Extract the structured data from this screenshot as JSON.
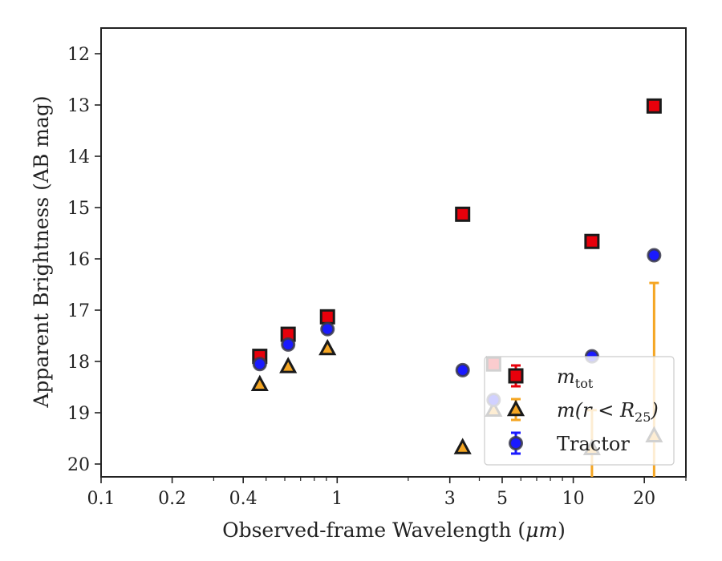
{
  "chart_data": {
    "type": "scatter",
    "title": "",
    "xlabel": "Observed-frame Wavelength (",
    "xlabel_unit": "μm",
    "xlabel_close": ")",
    "ylabel": "Apparent Brightness (AB mag)",
    "xscale": "log",
    "xlim": [
      0.1,
      30
    ],
    "ylim": [
      20.25,
      11.5
    ],
    "y_inverted": true,
    "grid": false,
    "legend_position": "lower-right",
    "x_ticks": [
      {
        "value": 0.1,
        "label": "0.1"
      },
      {
        "value": 0.2,
        "label": "0.2"
      },
      {
        "value": 0.4,
        "label": "0.4"
      },
      {
        "value": 1,
        "label": "1"
      },
      {
        "value": 3,
        "label": "3"
      },
      {
        "value": 5,
        "label": "5"
      },
      {
        "value": 10,
        "label": "10"
      },
      {
        "value": 20,
        "label": "20"
      }
    ],
    "x_minor_ticks": [
      0.3,
      0.5,
      0.6,
      0.7,
      0.8,
      0.9,
      2,
      4,
      6,
      7,
      8,
      9,
      30
    ],
    "y_ticks": [
      {
        "value": 12,
        "label": "12"
      },
      {
        "value": 13,
        "label": "13"
      },
      {
        "value": 14,
        "label": "14"
      },
      {
        "value": 15,
        "label": "15"
      },
      {
        "value": 16,
        "label": "16"
      },
      {
        "value": 17,
        "label": "17"
      },
      {
        "value": 18,
        "label": "18"
      },
      {
        "value": 19,
        "label": "19"
      },
      {
        "value": 20,
        "label": "20"
      }
    ],
    "series": [
      {
        "name": "m_tot",
        "legend_label_main": "m",
        "legend_label_sub": "tot",
        "marker": "square",
        "color": "#e8000b",
        "error_color": "#e8000b",
        "points": [
          {
            "x": 0.47,
            "y": 17.9
          },
          {
            "x": 0.62,
            "y": 17.47
          },
          {
            "x": 0.91,
            "y": 17.13
          },
          {
            "x": 3.4,
            "y": 15.13
          },
          {
            "x": 4.6,
            "y": 18.05
          },
          {
            "x": 12.0,
            "y": 15.66
          },
          {
            "x": 22.0,
            "y": 13.02
          }
        ]
      },
      {
        "name": "m(r < R25)",
        "legend_label_main": "m(r < R",
        "legend_label_sub": "25",
        "legend_label_end": ")",
        "marker": "triangle",
        "color": "#f5a623",
        "error_color": "#f5a623",
        "points": [
          {
            "x": 0.47,
            "y": 18.45
          },
          {
            "x": 0.62,
            "y": 18.1
          },
          {
            "x": 0.91,
            "y": 17.75
          },
          {
            "x": 3.4,
            "y": 19.68
          },
          {
            "x": 4.6,
            "y": 18.95
          },
          {
            "x": 12.0,
            "y": 19.7,
            "err_low": 18.95,
            "err_high": 20.4
          },
          {
            "x": 22.0,
            "y": 19.45,
            "err_low": 16.47,
            "err_high": 20.4
          }
        ]
      },
      {
        "name": "Tractor",
        "marker": "circle",
        "color": "#1a1aff",
        "error_color": "#1a1aff",
        "points": [
          {
            "x": 0.47,
            "y": 18.05
          },
          {
            "x": 0.62,
            "y": 17.67
          },
          {
            "x": 0.91,
            "y": 17.37
          },
          {
            "x": 3.4,
            "y": 18.17
          },
          {
            "x": 4.6,
            "y": 18.75
          },
          {
            "x": 12.0,
            "y": 17.9
          },
          {
            "x": 22.0,
            "y": 15.93
          }
        ]
      }
    ],
    "legend": [
      {
        "series": 0
      },
      {
        "series": 1
      },
      {
        "series": 2
      }
    ]
  }
}
